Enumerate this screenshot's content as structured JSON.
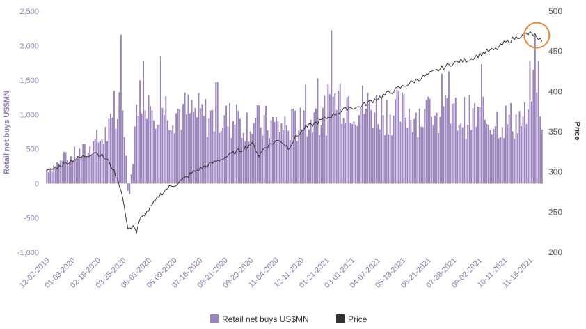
{
  "chart_data": {
    "type": "bar+line",
    "title": "",
    "ylabel_left": "Retail net buys US$MN",
    "ylabel_right": "Price",
    "ylim_left": [
      -1000,
      2500
    ],
    "ylim_right": [
      200,
      500
    ],
    "yticks_left": [
      "2,500",
      "2,000",
      "1,500",
      "1,000",
      "500",
      "0",
      "-500",
      "-1,000"
    ],
    "yticks_left_values": [
      2500,
      2000,
      1500,
      1000,
      500,
      0,
      -500,
      -1000
    ],
    "yticks_right": [
      "500",
      "450",
      "400",
      "350",
      "300",
      "250",
      "200"
    ],
    "yticks_right_values": [
      500,
      450,
      400,
      350,
      300,
      250,
      200
    ],
    "x_tick_labels": [
      "12-02-2019",
      "01-09-2020",
      "02-18-2020",
      "03-25-2020",
      "05-01-2020",
      "06-09-2020",
      "07-16-2020",
      "08-21-2020",
      "09-29-2020",
      "11-04-2020",
      "12-11-2020",
      "01-21-2021",
      "03-01-2021",
      "04-07-2021",
      "05-13-2021",
      "06-21-2021",
      "07-28-2021",
      "09-02-2021",
      "10-11-2021",
      "11-16-2021"
    ],
    "grid": false,
    "legend_position": "bottom",
    "series": [
      {
        "name": "Retail net buys US$MN",
        "type": "bar",
        "axis": "left",
        "color": "#9b83bd",
        "keypoints": [
          [
            0,
            200
          ],
          [
            5,
            250
          ],
          [
            10,
            320
          ],
          [
            15,
            380
          ],
          [
            20,
            420
          ],
          [
            25,
            470
          ],
          [
            30,
            600
          ],
          [
            35,
            700
          ],
          [
            40,
            850
          ],
          [
            42,
            1100
          ],
          [
            45,
            900
          ],
          [
            47,
            -100
          ],
          [
            48,
            -200
          ],
          [
            50,
            400
          ],
          [
            52,
            1000
          ],
          [
            55,
            1450
          ],
          [
            60,
            1200
          ],
          [
            70,
            1050
          ],
          [
            80,
            1000
          ],
          [
            90,
            950
          ],
          [
            100,
            900
          ],
          [
            110,
            880
          ],
          [
            120,
            850
          ],
          [
            130,
            820
          ],
          [
            140,
            800
          ],
          [
            150,
            850
          ],
          [
            160,
            950
          ],
          [
            165,
            1100
          ],
          [
            170,
            1250
          ],
          [
            175,
            1200
          ],
          [
            180,
            1100
          ],
          [
            190,
            1050
          ],
          [
            200,
            1000
          ],
          [
            210,
            1000
          ],
          [
            220,
            950
          ],
          [
            230,
            950
          ],
          [
            240,
            950
          ],
          [
            250,
            920
          ],
          [
            260,
            900
          ],
          [
            270,
            880
          ],
          [
            280,
            900
          ],
          [
            284,
            1500
          ],
          [
            287,
            1000
          ]
        ],
        "highlight_last": 2150
      },
      {
        "name": "Price",
        "type": "line",
        "axis": "right",
        "color": "#333333",
        "keypoints": [
          [
            0,
            300
          ],
          [
            5,
            305
          ],
          [
            10,
            310
          ],
          [
            15,
            315
          ],
          [
            20,
            318
          ],
          [
            25,
            322
          ],
          [
            28,
            325
          ],
          [
            32,
            320
          ],
          [
            35,
            315
          ],
          [
            38,
            305
          ],
          [
            40,
            295
          ],
          [
            42,
            285
          ],
          [
            44,
            270
          ],
          [
            45,
            255
          ],
          [
            46,
            240
          ],
          [
            47,
            230
          ],
          [
            48,
            228
          ],
          [
            50,
            235
          ],
          [
            52,
            225
          ],
          [
            54,
            240
          ],
          [
            56,
            245
          ],
          [
            60,
            255
          ],
          [
            65,
            270
          ],
          [
            70,
            280
          ],
          [
            75,
            285
          ],
          [
            80,
            292
          ],
          [
            85,
            300
          ],
          [
            90,
            305
          ],
          [
            95,
            310
          ],
          [
            100,
            315
          ],
          [
            105,
            320
          ],
          [
            110,
            325
          ],
          [
            115,
            330
          ],
          [
            118,
            335
          ],
          [
            120,
            333
          ],
          [
            123,
            320
          ],
          [
            126,
            330
          ],
          [
            130,
            335
          ],
          [
            135,
            340
          ],
          [
            140,
            330
          ],
          [
            145,
            345
          ],
          [
            150,
            355
          ],
          [
            155,
            360
          ],
          [
            160,
            365
          ],
          [
            165,
            370
          ],
          [
            170,
            375
          ],
          [
            175,
            380
          ],
          [
            180,
            380
          ],
          [
            185,
            385
          ],
          [
            190,
            390
          ],
          [
            195,
            395
          ],
          [
            200,
            400
          ],
          [
            205,
            405
          ],
          [
            210,
            410
          ],
          [
            215,
            415
          ],
          [
            220,
            420
          ],
          [
            225,
            425
          ],
          [
            230,
            430
          ],
          [
            235,
            435
          ],
          [
            240,
            438
          ],
          [
            245,
            440
          ],
          [
            250,
            445
          ],
          [
            255,
            450
          ],
          [
            260,
            452
          ],
          [
            265,
            460
          ],
          [
            270,
            465
          ],
          [
            275,
            470
          ],
          [
            280,
            472
          ],
          [
            283,
            470
          ],
          [
            285,
            462
          ],
          [
            287,
            465
          ]
        ]
      }
    ],
    "annotation": {
      "type": "circle",
      "color": "#e58a3a",
      "target_index": 284
    }
  },
  "legend": {
    "items": [
      {
        "label": "Retail net buys US$MN",
        "color": "#9b83bd"
      },
      {
        "label": "Price",
        "color": "#333333"
      }
    ]
  }
}
